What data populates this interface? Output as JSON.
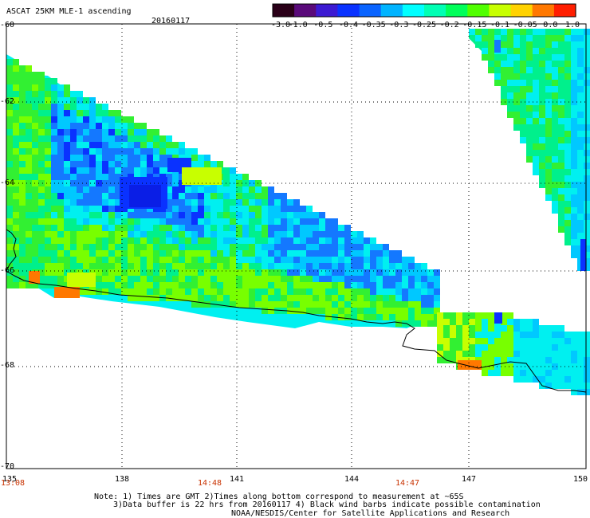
{
  "header": {
    "title": "ASCAT 25KM MLE-1 ascending",
    "date": "20160117"
  },
  "colorbar": {
    "ticks": [
      "-3.0",
      "-1.0",
      "-0.5",
      "-0.4",
      "-0.35",
      "-0.3",
      "-0.25",
      "-0.2",
      "-0.15",
      "-0.1",
      "-0.05",
      "0.0",
      "1.0"
    ],
    "colors": [
      "#2a0018",
      "#5a0a7a",
      "#3c1ad2",
      "#0a32ff",
      "#0a64ff",
      "#00b4ff",
      "#00ffff",
      "#00ffb4",
      "#00ff5a",
      "#50ff00",
      "#c8ff00",
      "#ffd200",
      "#ff7800",
      "#ff1e00"
    ]
  },
  "axes": {
    "lat_labels": [
      "-60",
      "-62",
      "-64",
      "-66",
      "-68",
      "-70"
    ],
    "lon_labels": [
      "135",
      "138",
      "141",
      "144",
      "147",
      "150"
    ],
    "time_labels": [
      "13:08",
      "14:48",
      "14:47"
    ]
  },
  "colors": {
    "time_label": "#c83200",
    "grid": "#000000",
    "coast": "#000000"
  },
  "footer": {
    "line1": "Note: 1) Times are GMT 2)Times along bottom correspond to measurement at ~65S",
    "line2": "3)Data buffer is 22 hrs from 20160117 4) Black wind barbs indicate possible contamination",
    "line3": "NOAA/NESDIS/Center for Satellite Applications and Research"
  }
}
